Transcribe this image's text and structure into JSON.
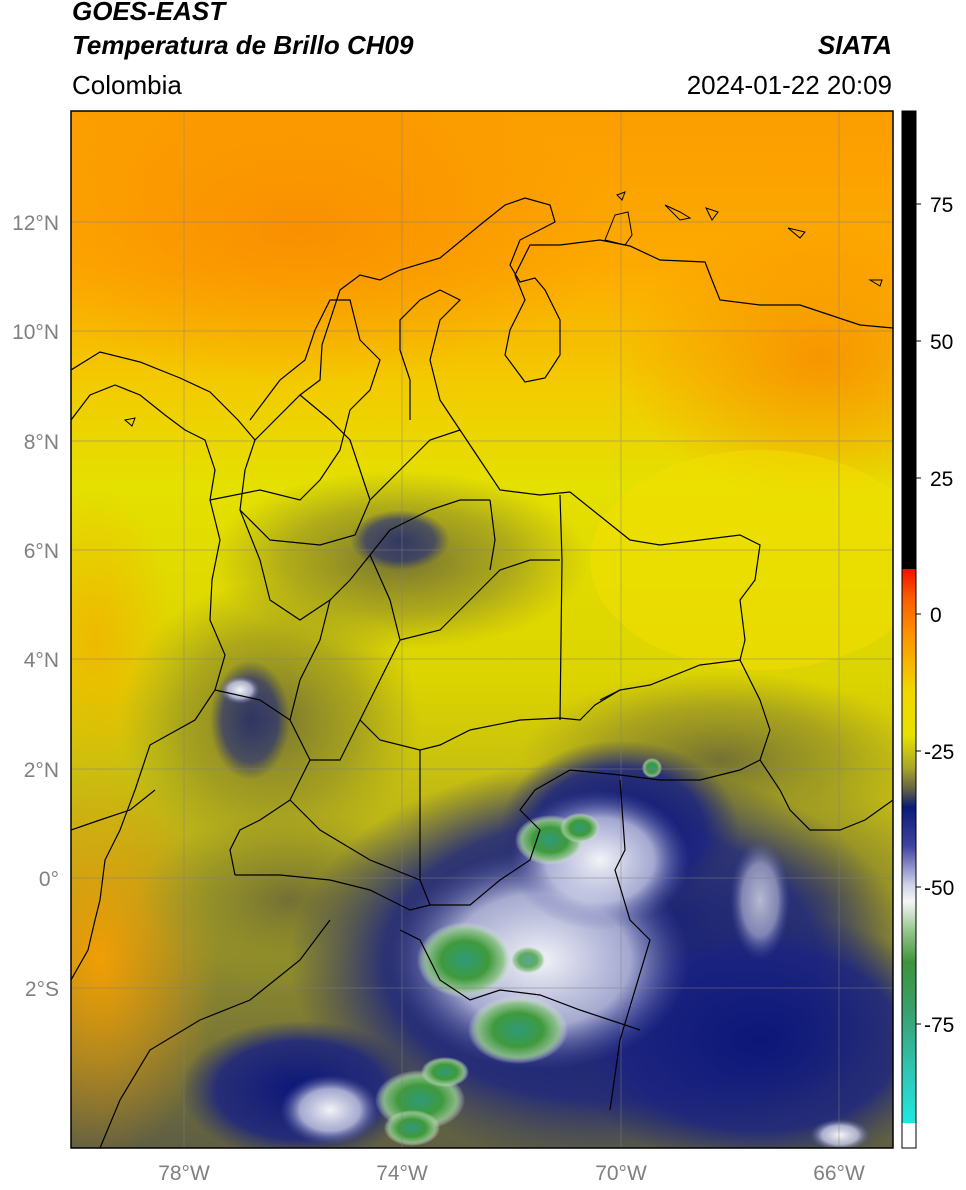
{
  "header": {
    "satellite": "GOES-EAST",
    "product": "Temperatura de Brillo CH09",
    "agency": "SIATA",
    "region": "Colombia",
    "datetime": "2024-01-22 20:09"
  },
  "map": {
    "lat_labels": [
      "12°N",
      "10°N",
      "8°N",
      "6°N",
      "4°N",
      "2°N",
      "0°",
      "2°S"
    ],
    "lon_labels": [
      "78°W",
      "74°W",
      "70°W",
      "66°W"
    ]
  },
  "colorbar": {
    "tick_labels": [
      "75",
      "50",
      "25",
      "0",
      "-25",
      "-50",
      "-75"
    ]
  },
  "colors": {
    "warm_orange": "#fd9a00",
    "yellow": "#e6df00",
    "olive": "#8a8a2a",
    "navy": "#0d1a80",
    "white": "#f4f4f4",
    "green": "#3f9a3c",
    "teal": "#30c0a0"
  }
}
